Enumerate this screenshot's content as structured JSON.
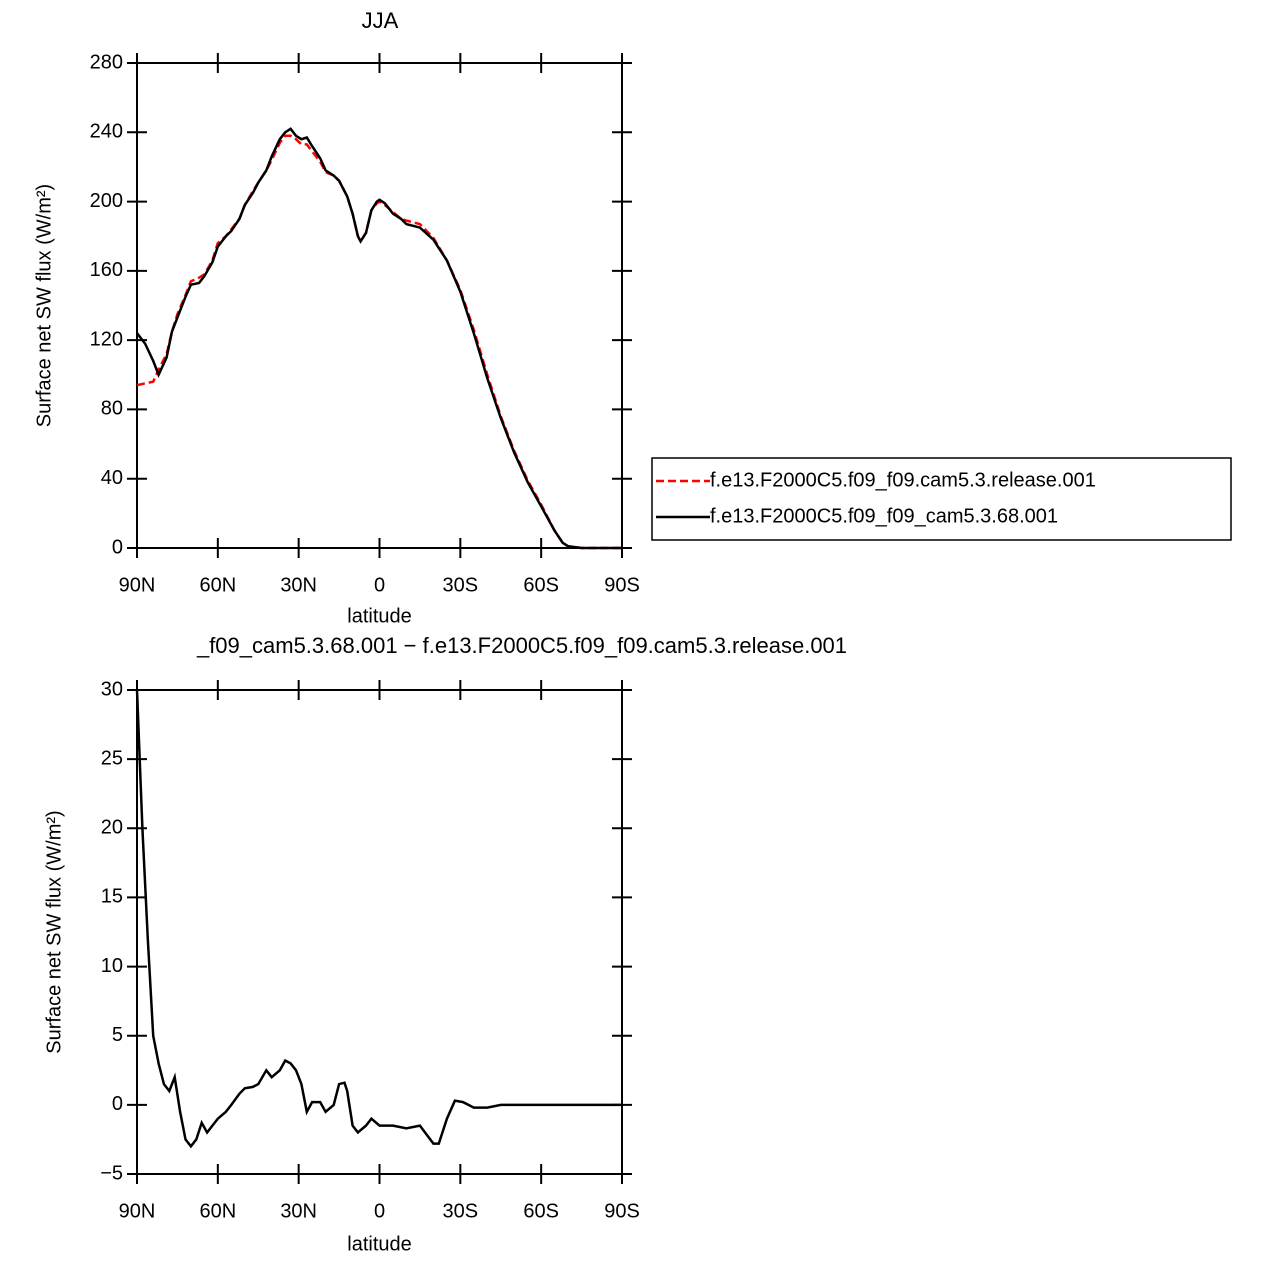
{
  "chart_data": [
    {
      "type": "line",
      "title": "JJA",
      "xlabel": "latitude",
      "ylabel": "Surface net SW flux (W/m²)",
      "x": [
        90,
        87,
        84,
        82,
        79,
        77,
        75,
        72,
        70,
        67,
        65,
        62,
        60,
        57,
        55,
        52,
        50,
        47,
        45,
        42,
        40,
        37,
        35,
        33,
        31,
        29,
        27,
        25,
        22,
        20,
        17,
        15,
        12,
        10,
        8,
        7,
        5,
        3,
        1,
        0,
        -2,
        -5,
        -8,
        -10,
        -15,
        -20,
        -25,
        -30,
        -35,
        -40,
        -45,
        -50,
        -55,
        -60,
        -65,
        -68,
        -70,
        -75,
        -80,
        -90
      ],
      "series": [
        {
          "name": "f.e13.F2000C5.f09_f09.cam5.3.release.001",
          "color": "#ff0000",
          "linestyle": "dashed",
          "values": [
            94,
            95,
            96,
            103,
            112,
            125,
            135,
            146,
            154,
            156,
            158,
            166,
            176,
            180,
            184,
            190,
            198,
            206,
            211,
            218,
            224,
            234,
            238,
            238,
            236,
            233,
            233,
            229,
            223,
            217,
            215,
            212,
            203,
            193,
            180,
            177,
            182,
            195,
            199,
            200,
            198,
            194,
            190,
            189,
            187,
            179,
            166,
            149,
            126,
            100,
            76,
            56,
            39,
            25,
            10,
            3,
            1,
            0,
            0,
            0
          ]
        },
        {
          "name": "f.e13.F2000C5.f09_f09_cam5.3.68.001",
          "color": "#000000",
          "linestyle": "solid",
          "values": [
            124,
            118,
            108,
            100,
            110,
            125,
            133,
            145,
            152,
            153,
            157,
            165,
            174,
            180,
            183,
            190,
            198,
            205,
            211,
            218,
            226,
            236,
            240,
            242,
            238,
            236,
            237,
            232,
            225,
            218,
            215,
            212,
            203,
            193,
            180,
            177,
            182,
            195,
            200,
            201,
            199,
            193,
            190,
            187,
            185,
            178,
            166,
            148,
            124,
            98,
            75,
            55,
            38,
            24,
            10,
            3,
            1,
            0,
            0,
            0
          ]
        }
      ],
      "xlim": [
        90,
        -90
      ],
      "xticks": [
        {
          "value": 90,
          "label": "90N"
        },
        {
          "value": 60,
          "label": "60N"
        },
        {
          "value": 30,
          "label": "30N"
        },
        0,
        {
          "value": -30,
          "label": "30S"
        },
        {
          "value": -60,
          "label": "60S"
        },
        {
          "value": -90,
          "label": "90S"
        }
      ],
      "ylim": [
        0,
        280
      ],
      "yticks": [
        0,
        40,
        80,
        120,
        160,
        200,
        240,
        280
      ],
      "legend": "right"
    },
    {
      "type": "line",
      "title": "_f09_cam5.3.68.001 − f.e13.F2000C5.f09_f09.cam5.3.release.001",
      "xlabel": "latitude",
      "ylabel": "Surface net SW flux (W/m²)",
      "x": [
        90,
        88,
        86,
        84,
        82,
        80,
        78,
        76,
        74,
        72,
        70,
        68,
        66,
        64,
        62,
        60,
        57,
        55,
        52,
        50,
        47,
        45,
        42,
        40,
        37,
        35,
        33,
        31,
        29,
        27,
        25,
        22,
        20,
        17,
        15,
        13,
        12,
        10,
        8,
        5,
        3,
        0,
        -5,
        -10,
        -15,
        -20,
        -22,
        -25,
        -28,
        -31,
        -35,
        -40,
        -45,
        -50,
        -90
      ],
      "series": [
        {
          "color": "#000000",
          "linestyle": "solid",
          "values": [
            30,
            20,
            12,
            5,
            3,
            1.5,
            1,
            2,
            -0.5,
            -2.5,
            -3,
            -2.5,
            -1.3,
            -2,
            -1.5,
            -1,
            -0.5,
            0,
            0.8,
            1.2,
            1.3,
            1.5,
            2.5,
            2,
            2.5,
            3.2,
            3,
            2.5,
            1.5,
            -0.5,
            0.2,
            0.2,
            -0.5,
            0,
            1.5,
            1.6,
            1,
            -1.5,
            -2,
            -1.5,
            -1,
            -1.5,
            -1.5,
            -1.7,
            -1.5,
            -2.8,
            -2.8,
            -1,
            0.3,
            0.2,
            -0.2,
            -0.2,
            0,
            0,
            0
          ]
        }
      ],
      "xlim": [
        90,
        -90
      ],
      "xticks": [
        {
          "value": 90,
          "label": "90N"
        },
        {
          "value": 60,
          "label": "60N"
        },
        {
          "value": 30,
          "label": "30N"
        },
        0,
        {
          "value": -30,
          "label": "30S"
        },
        {
          "value": -60,
          "label": "60S"
        },
        {
          "value": -90,
          "label": "90S"
        }
      ],
      "ylim": [
        -5,
        30
      ],
      "yticks": [
        {
          "value": -5,
          "label": "−5"
        },
        0,
        5,
        10,
        15,
        20,
        25,
        30
      ]
    }
  ]
}
